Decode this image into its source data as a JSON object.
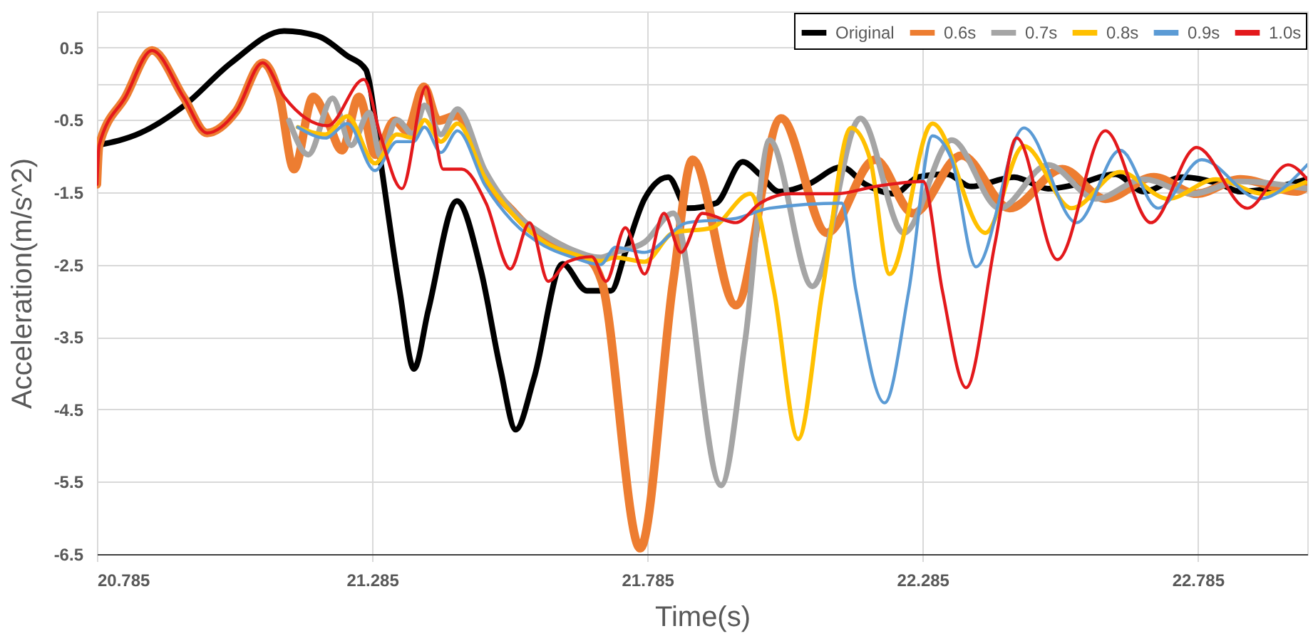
{
  "chart_data": {
    "type": "line",
    "xlabel": "Time(s)",
    "ylabel": "Acceleration(m/s^2)",
    "xlim": [
      20.785,
      22.984
    ],
    "ylim": [
      -6.5,
      1.0
    ],
    "xticks": [
      20.785,
      21.285,
      21.785,
      22.285,
      22.785
    ],
    "yticks": [
      -6.5,
      -5.5,
      -4.5,
      -3.5,
      -2.5,
      -1.5,
      -0.5,
      {
        "value": 0,
        "label": null
      },
      0.5
    ],
    "grid": true,
    "legend": "top right",
    "marker": "none",
    "line_style": "solid",
    "series": [
      {
        "name": "Original",
        "color": "#000000",
        "x": [
          20.785,
          20.864,
          20.942,
          21.029,
          21.125,
          21.186,
          21.239,
          21.274,
          21.278,
          21.3,
          21.335,
          21.361,
          21.387,
          21.439,
          21.483,
          21.518,
          21.546,
          21.579,
          21.631,
          21.675,
          21.719,
          21.745,
          21.78,
          21.823,
          21.858,
          21.91,
          21.958,
          21.989,
          22.024,
          22.077,
          22.138,
          22.181,
          22.234,
          22.277,
          22.329,
          22.373,
          22.451,
          22.513,
          22.565,
          22.635,
          22.687,
          22.757,
          22.827,
          22.862,
          22.984
        ],
        "values": [
          -0.85,
          -0.68,
          -0.31,
          0.29,
          0.73,
          0.66,
          0.39,
          0.19,
          0.09,
          -1.05,
          -2.86,
          -3.94,
          -3.13,
          -1.62,
          -2.59,
          -3.94,
          -4.78,
          -4.07,
          -2.49,
          -2.86,
          -2.86,
          -2.33,
          -1.59,
          -1.29,
          -1.72,
          -1.65,
          -1.08,
          -1.25,
          -1.49,
          -1.39,
          -1.15,
          -1.39,
          -1.52,
          -1.29,
          -1.25,
          -1.42,
          -1.29,
          -1.45,
          -1.39,
          -1.25,
          -1.49,
          -1.29,
          -1.39,
          -1.49,
          -1.32
        ]
      },
      {
        "name": "0.6s",
        "color": "#ed7d31",
        "x": [
          20.785,
          20.789,
          20.837,
          20.885,
          20.942,
          20.985,
          21.038,
          21.086,
          21.117,
          21.143,
          21.178,
          21.204,
          21.23,
          21.261,
          21.291,
          21.326,
          21.348,
          21.379,
          21.405,
          21.439,
          21.492,
          21.544,
          21.571,
          21.614,
          21.649,
          21.684,
          21.702,
          21.772,
          21.832,
          21.867,
          21.946,
          22.028,
          22.111,
          22.199,
          22.268,
          22.356,
          22.443,
          22.539,
          22.617,
          22.705,
          22.783,
          22.862,
          22.966,
          22.984
        ],
        "values": [
          -1.39,
          -0.85,
          -0.18,
          0.46,
          -0.18,
          -0.68,
          -0.38,
          0.29,
          -0.18,
          -1.18,
          -0.18,
          -0.51,
          -0.92,
          -0.18,
          -0.98,
          -0.51,
          -0.65,
          -0.04,
          -0.51,
          -0.44,
          -1.32,
          -1.79,
          -2.0,
          -2.19,
          -2.33,
          -2.46,
          -2.73,
          -6.42,
          -2.73,
          -1.05,
          -3.06,
          -0.48,
          -2.06,
          -1.05,
          -1.79,
          -0.99,
          -1.72,
          -1.18,
          -1.59,
          -1.29,
          -1.52,
          -1.32,
          -1.49,
          -1.42
        ]
      },
      {
        "name": "0.7s",
        "color": "#a5a5a5",
        "x": [
          21.134,
          21.169,
          21.213,
          21.247,
          21.28,
          21.3,
          21.33,
          21.36,
          21.38,
          21.41,
          21.44,
          21.49,
          21.54,
          21.6,
          21.65,
          21.7,
          21.727,
          21.78,
          21.832,
          21.919,
          21.963,
          22.007,
          22.085,
          22.172,
          22.251,
          22.338,
          22.425,
          22.513,
          22.6,
          22.687,
          22.775,
          22.862,
          22.984
        ],
        "values": [
          -0.51,
          -0.98,
          -0.2,
          -0.85,
          -0.4,
          -1.0,
          -0.5,
          -0.7,
          -0.3,
          -0.7,
          -0.35,
          -1.2,
          -1.75,
          -2.1,
          -2.3,
          -2.4,
          -2.33,
          -2.19,
          -1.79,
          -5.55,
          -3.53,
          -0.78,
          -2.8,
          -0.48,
          -2.06,
          -0.78,
          -1.72,
          -1.12,
          -1.59,
          -1.32,
          -1.52,
          -1.35,
          -1.45
        ]
      },
      {
        "name": "0.8s",
        "color": "#ffc000",
        "x": [
          21.15,
          21.2,
          21.24,
          21.29,
          21.33,
          21.36,
          21.38,
          21.41,
          21.44,
          21.49,
          21.54,
          21.6,
          21.65,
          21.7,
          21.727,
          21.78,
          21.832,
          21.902,
          21.972,
          22.015,
          22.059,
          22.103,
          22.155,
          22.19,
          22.225,
          22.303,
          22.399,
          22.469,
          22.556,
          22.644,
          22.731,
          22.818,
          22.905,
          22.984
        ],
        "values": [
          -0.6,
          -0.7,
          -0.45,
          -1.1,
          -0.7,
          -0.75,
          -0.5,
          -0.8,
          -0.55,
          -1.3,
          -1.8,
          -2.2,
          -2.35,
          -2.45,
          -2.4,
          -2.46,
          -2.06,
          -1.99,
          -1.52,
          -2.86,
          -4.91,
          -2.86,
          -0.61,
          -1.05,
          -2.63,
          -0.55,
          -2.06,
          -0.86,
          -1.72,
          -1.22,
          -1.59,
          -1.32,
          -1.52,
          -1.35
        ]
      },
      {
        "name": "0.9s",
        "color": "#5b9bd5",
        "x": [
          21.15,
          21.2,
          21.24,
          21.29,
          21.33,
          21.36,
          21.38,
          21.41,
          21.44,
          21.49,
          21.54,
          21.6,
          21.65,
          21.7,
          21.727,
          21.78,
          21.858,
          21.946,
          22.007,
          22.138,
          22.164,
          22.216,
          22.26,
          22.303,
          22.338,
          22.382,
          22.469,
          22.565,
          22.644,
          22.713,
          22.792,
          22.897,
          22.984
        ],
        "values": [
          -0.6,
          -0.75,
          -0.55,
          -1.2,
          -0.8,
          -0.8,
          -0.6,
          -0.95,
          -0.65,
          -1.4,
          -1.9,
          -2.25,
          -2.4,
          -2.5,
          -2.26,
          -2.33,
          -1.92,
          -1.86,
          -1.72,
          -1.65,
          -2.86,
          -4.41,
          -2.86,
          -0.72,
          -1.05,
          -2.53,
          -0.61,
          -1.92,
          -0.92,
          -1.72,
          -1.05,
          -1.59,
          -1.12
        ]
      },
      {
        "name": "1.0s",
        "color": "#e3191c",
        "x": [
          20.785,
          20.789,
          20.837,
          20.885,
          20.942,
          20.985,
          21.038,
          21.086,
          21.125,
          21.204,
          21.27,
          21.3,
          21.339,
          21.383,
          21.414,
          21.448,
          21.492,
          21.536,
          21.571,
          21.605,
          21.64,
          21.684,
          21.71,
          21.745,
          21.78,
          21.815,
          21.846,
          21.885,
          21.946,
          21.99,
          22.042,
          22.129,
          22.199,
          22.286,
          22.321,
          22.364,
          22.417,
          22.456,
          22.53,
          22.617,
          22.7,
          22.783,
          22.875,
          22.949,
          22.984
        ],
        "values": [
          -1.39,
          -0.85,
          -0.18,
          0.46,
          -0.18,
          -0.68,
          -0.38,
          0.29,
          -0.18,
          -0.58,
          0.06,
          -0.71,
          -1.45,
          -0.04,
          -1.18,
          -1.18,
          -1.65,
          -2.56,
          -1.92,
          -2.73,
          -2.46,
          -2.39,
          -2.73,
          -1.99,
          -2.63,
          -1.79,
          -2.33,
          -1.79,
          -1.92,
          -1.65,
          -1.52,
          -1.52,
          -1.42,
          -1.35,
          -2.86,
          -4.2,
          -2.19,
          -0.75,
          -2.43,
          -0.65,
          -1.92,
          -0.88,
          -1.72,
          -1.12,
          -1.32
        ]
      }
    ]
  }
}
